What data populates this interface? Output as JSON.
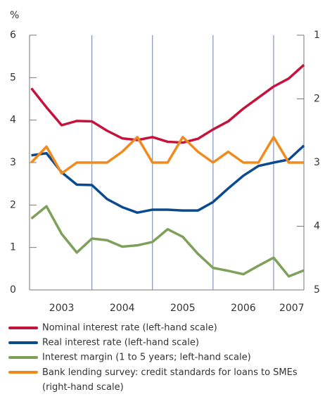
{
  "chart_data": {
    "type": "line",
    "unit_label": "%",
    "x": [
      2003.0,
      2003.25,
      2003.5,
      2003.75,
      2004.0,
      2004.25,
      2004.5,
      2004.75,
      2005.0,
      2005.25,
      2005.5,
      2005.75,
      2006.0,
      2006.25,
      2006.5,
      2006.75,
      2007.0,
      2007.25,
      2007.5
    ],
    "xlim": [
      2002.97,
      2007.5
    ],
    "year_labels": [
      {
        "value": 2003.5,
        "label": "2003"
      },
      {
        "value": 2004.5,
        "label": "2004"
      },
      {
        "value": 2005.5,
        "label": "2005"
      },
      {
        "value": 2006.5,
        "label": "2006"
      },
      {
        "value": 2007.3,
        "label": "2007"
      }
    ],
    "xgrid": [
      2004,
      2005,
      2006,
      2007
    ],
    "ylim": [
      0,
      6
    ],
    "yticks": [
      0,
      1,
      2,
      3,
      4,
      5,
      6
    ],
    "y2lim": [
      5,
      1
    ],
    "y2ticks": [
      1,
      2,
      3,
      4,
      5
    ],
    "series": [
      {
        "name": "Nominal interest rate (left-hand scale)",
        "color": "#c4143c",
        "values": [
          4.75,
          4.3,
          3.88,
          3.98,
          3.97,
          3.75,
          3.57,
          3.53,
          3.6,
          3.49,
          3.47,
          3.56,
          3.78,
          3.97,
          4.27,
          4.53,
          4.79,
          4.98,
          5.3
        ]
      },
      {
        "name": "Real interest rate (left-hand scale)",
        "color": "#0b4a8f",
        "values": [
          3.17,
          3.22,
          2.77,
          2.48,
          2.47,
          2.14,
          1.95,
          1.82,
          1.89,
          1.89,
          1.87,
          1.87,
          2.07,
          2.39,
          2.69,
          2.92,
          3.0,
          3.07,
          3.4
        ]
      },
      {
        "name": "Interest margin (1 to 5 years; left-hand scale)",
        "color": "#7fa05a",
        "values": [
          1.68,
          1.97,
          1.32,
          0.88,
          1.21,
          1.17,
          1.02,
          1.05,
          1.13,
          1.43,
          1.25,
          0.85,
          0.52,
          0.45,
          0.37,
          0.57,
          0.76,
          0.32,
          0.46
        ]
      },
      {
        "name": "Bank lending survey: credit standards for loans to SMEs (right-hand scale)",
        "color": "#f08a1c",
        "axis": "y2",
        "values": [
          3,
          2.75,
          3.17,
          3,
          3,
          3,
          2.83,
          2.6,
          3,
          3,
          2.6,
          2.83,
          3,
          2.83,
          3,
          3,
          2.6,
          3,
          3
        ]
      }
    ]
  }
}
